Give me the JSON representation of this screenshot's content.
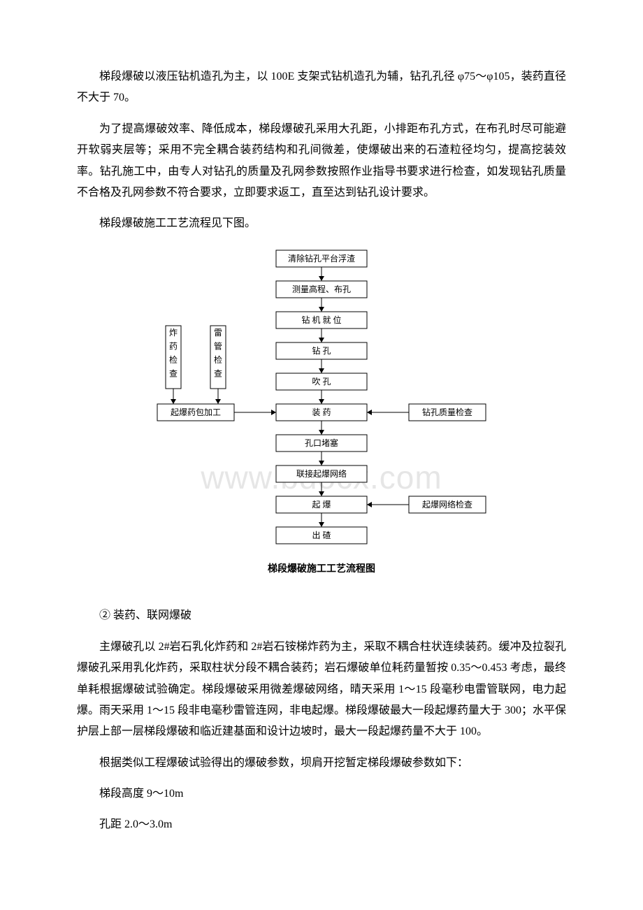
{
  "watermark": "www.bdocx.com",
  "para1": "梯段爆破以液压钻机造孔为主，以 100E 支架式钻机造孔为辅，钻孔孔径 φ75～φ105，装药直径不大于 70。",
  "para2": "为了提高爆破效率、降低成本，梯段爆破孔采用大孔距，小排距布孔方式，在布孔时尽可能避开软弱夹层等；采用不完全耦合装药结构和孔间微差，使爆破出来的石渣粒径均匀，提高挖装效率。钻孔施工中，由专人对钻孔的质量及孔网参数按照作业指导书要求进行检查，如发现钻孔质量不合格及孔网参数不符合要求，立即要求返工，直至达到钻孔设计要求。",
  "para3": "梯段爆破施工工艺流程见下图。",
  "diagram_caption": "梯段爆破施工工艺流程图",
  "para4": "② 装药、联网爆破",
  "para5": "主爆破孔以 2#岩石乳化炸药和 2#岩石铵梯炸药为主，采取不耦合柱状连续装药。缓冲及拉裂孔爆破孔采用乳化炸药，采取柱状分段不耦合装药；岩石爆破单位耗药量暂按 0.35～0.453 考虑，最终单耗根据爆破试验确定。梯段爆破采用微差爆破网络，晴天采用 1～15 段毫秒电雷管联网，电力起爆。雨天采用 1～15 段非电毫秒雷管连网，非电起爆。梯段爆破最大一段起爆药量大于 300；水平保护层上部一层梯段爆破和临近建基面和设计边坡时，最大一段起爆药量不大于 100。",
  "para6": "根据类似工程爆破试验得出的爆破参数，坝肩开挖暂定梯段爆破参数如下：",
  "para7": "梯段高度 9～10m",
  "para8": "孔距 2.0～3.0m",
  "flow": {
    "main_nodes": [
      {
        "label": "清除钻孔平台浮渣"
      },
      {
        "label": "测量高程、布孔"
      },
      {
        "label": "钻 机 就 位"
      },
      {
        "label": "钻        孔"
      },
      {
        "label": "吹        孔"
      },
      {
        "label": "装        药"
      },
      {
        "label": "孔口堵塞"
      },
      {
        "label": "联接起爆网络"
      },
      {
        "label": "起        爆"
      },
      {
        "label": "出        碴"
      }
    ],
    "left_vert1": "炸药检查",
    "left_vert2": "雷管检查",
    "left_box": "起爆药包加工",
    "right_box1": "钻孔质量检查",
    "right_box2": "起爆网络检查",
    "colors": {
      "box_fill": "#ffffff",
      "stroke": "#000000",
      "text": "#000000"
    },
    "main_box": {
      "w": 130,
      "h": 24
    },
    "side_box": {
      "w": 110,
      "h": 24
    },
    "vert_box": {
      "w": 22,
      "h": 90
    },
    "vgap": 44,
    "font_size": 12
  }
}
